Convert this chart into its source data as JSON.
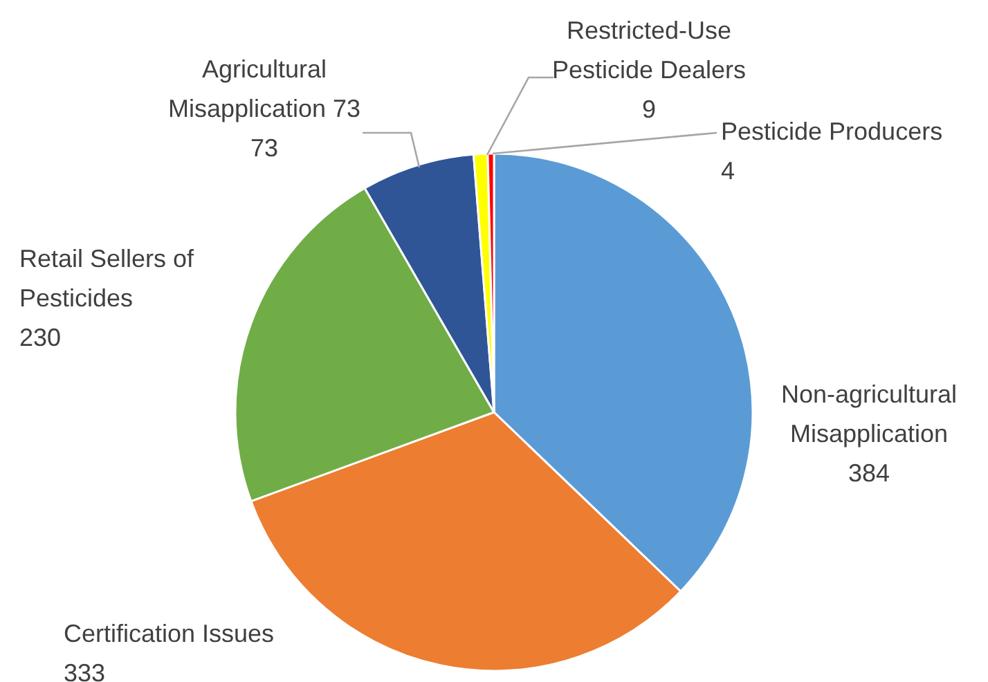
{
  "chart_data": {
    "type": "pie",
    "categories": [
      "Non-agricultural Misapplication",
      "Certification Issues",
      "Retail Sellers of Pesticides",
      "Agricultural Misapplication 73",
      "Restricted-Use Pesticide Dealers",
      "Pesticide Producers"
    ],
    "values": [
      384,
      333,
      230,
      73,
      9,
      4
    ],
    "colors": [
      "#5b9bd5",
      "#ed7d31",
      "#70ad47",
      "#2f5597",
      "#ffff00",
      "#ff0000"
    ],
    "data_labels": true
  }
}
